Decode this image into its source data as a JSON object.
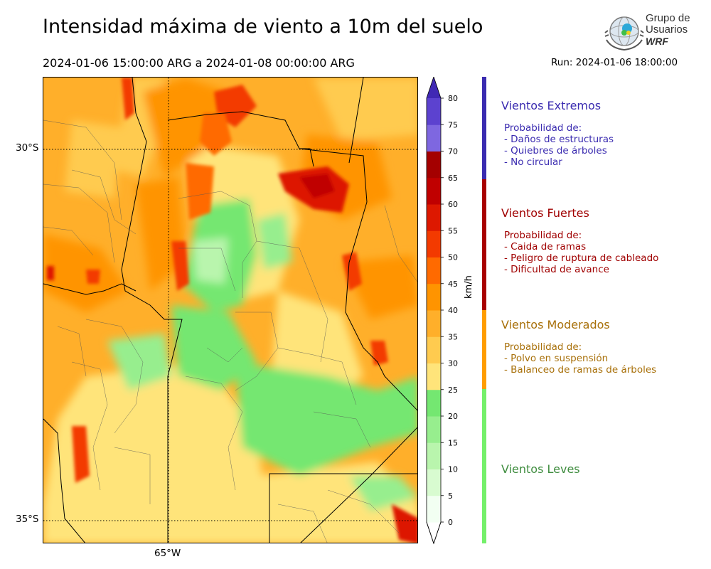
{
  "header": {
    "title": "Intensidad máxima de viento a 10m del suelo",
    "period": "2024-01-06 15:00:00 ARG  a  2024-01-08 00:00:00 ARG",
    "run": "Run: 2024-01-06 18:00:00"
  },
  "logo": {
    "line1": "Grupo de",
    "line2": "Usuarios",
    "line3": "WRF"
  },
  "map": {
    "lat_labels": [
      "30°S",
      "35°S"
    ],
    "lon_labels": [
      "65°W"
    ]
  },
  "colorbar": {
    "unit": "km/h",
    "ticks": [
      "0",
      "5",
      "10",
      "15",
      "20",
      "25",
      "30",
      "35",
      "40",
      "45",
      "50",
      "55",
      "60",
      "65",
      "70",
      "75",
      "80"
    ],
    "colors": [
      "#f2fff2",
      "#d8fbd0",
      "#b9f5ad",
      "#97ee8e",
      "#74e771",
      "#ffe47a",
      "#ffcb4f",
      "#ffaf2a",
      "#ff9400",
      "#ff6a00",
      "#f33a00",
      "#dd1800",
      "#c00000",
      "#a40000",
      "#7e67e0",
      "#5c42cf",
      "#4028b4"
    ],
    "range": [
      0,
      80
    ]
  },
  "categories": [
    {
      "title": "Vientos Extremos",
      "color": "#3a2bb0",
      "bar_color": "#3a2bb0",
      "lines": [
        "Probabilidad de:",
        "- Daños de estructuras",
        "- Quiebres de árboles",
        "- No circular"
      ]
    },
    {
      "title": "Vientos Fuertes",
      "color": "#a00000",
      "bar_color": "#a80000",
      "lines": [
        "Probabilidad de:",
        "- Caida de ramas",
        "- Peligro de ruptura de cableado",
        "- Dificultad de avance"
      ]
    },
    {
      "title": "Vientos Moderados",
      "color": "#a8700a",
      "bar_color": "#ff9d00",
      "lines": [
        "Probabilidad de:",
        "- Polvo en suspensión",
        "- Balanceo de ramas de árboles"
      ]
    },
    {
      "title": "Vientos Leves",
      "color": "#3e8c3e",
      "bar_color": "#74f06a",
      "lines": []
    }
  ]
}
